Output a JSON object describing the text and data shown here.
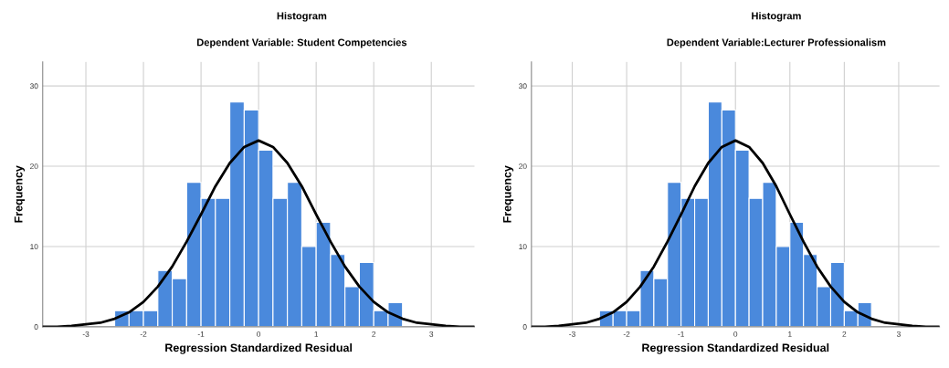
{
  "chart_data": [
    {
      "type": "histogram",
      "title": "Histogram",
      "subtitle": "Dependent Variable: Student Competencies",
      "xlabel": "Regression Standardized Residual",
      "ylabel": "Frequency",
      "bins": [
        -2.5,
        -2.25,
        -2.0,
        -1.75,
        -1.5,
        -1.25,
        -1.0,
        -0.75,
        -0.5,
        -0.25,
        0,
        0.25,
        0.5,
        0.75,
        1.0,
        1.25,
        1.5,
        1.75,
        2.0,
        2.25,
        2.5
      ],
      "series": [
        {
          "color": "#4a89dc",
          "values": [
            2,
            2,
            2,
            7,
            6,
            18,
            16,
            16,
            28,
            27,
            22,
            16,
            18,
            10,
            13,
            9,
            5,
            8,
            2,
            3
          ]
        },
        {
          "type": "line",
          "color": "#000000",
          "x": [
            -3.75,
            -3.5,
            -3.25,
            -3.0,
            -2.75,
            -2.5,
            -2.25,
            -2.0,
            -1.75,
            -1.5,
            -1.25,
            -1.0,
            -0.75,
            -0.5,
            -0.25,
            0,
            0.25,
            0.5,
            0.75,
            1.0,
            1.25,
            1.5,
            1.75,
            2.0,
            2.25,
            2.5,
            2.75,
            3.0,
            3.25,
            3.5,
            3.75
          ],
          "values": [
            0,
            0,
            0.1,
            0.3,
            0.5,
            1.0,
            1.8,
            3.1,
            5.0,
            7.5,
            10.6,
            14.0,
            17.5,
            20.4,
            22.4,
            23.2,
            22.4,
            20.4,
            17.5,
            14.0,
            10.6,
            7.5,
            5.0,
            3.1,
            1.8,
            1.0,
            0.5,
            0.3,
            0.1,
            0,
            0
          ]
        }
      ],
      "xlim": [
        -3.75,
        3.75
      ],
      "ylim": [
        0,
        33
      ],
      "xticks": [
        -3,
        -2,
        -1,
        0,
        1,
        2,
        3
      ],
      "yticks": [
        0,
        10,
        20,
        30
      ],
      "grid": true,
      "legend": false
    },
    {
      "type": "histogram",
      "title": "Histogram",
      "subtitle": "Dependent Variable:Lecturer Professionalism",
      "xlabel": "Regression Standardized Residual",
      "ylabel": "Frequency",
      "bins": [
        -2.5,
        -2.25,
        -2.0,
        -1.75,
        -1.5,
        -1.25,
        -1.0,
        -0.75,
        -0.5,
        -0.25,
        0,
        0.25,
        0.5,
        0.75,
        1.0,
        1.25,
        1.5,
        1.75,
        2.0,
        2.25,
        2.5
      ],
      "series": [
        {
          "color": "#4a89dc",
          "values": [
            2,
            2,
            2,
            7,
            6,
            18,
            16,
            16,
            28,
            27,
            22,
            16,
            18,
            10,
            13,
            9,
            5,
            8,
            2,
            3
          ]
        },
        {
          "type": "line",
          "color": "#000000",
          "x": [
            -3.75,
            -3.5,
            -3.25,
            -3.0,
            -2.75,
            -2.5,
            -2.25,
            -2.0,
            -1.75,
            -1.5,
            -1.25,
            -1.0,
            -0.75,
            -0.5,
            -0.25,
            0,
            0.25,
            0.5,
            0.75,
            1.0,
            1.25,
            1.5,
            1.75,
            2.0,
            2.25,
            2.5,
            2.75,
            3.0,
            3.25,
            3.5,
            3.75
          ],
          "values": [
            0,
            0,
            0.1,
            0.3,
            0.5,
            1.0,
            1.8,
            3.1,
            5.0,
            7.5,
            10.6,
            14.0,
            17.5,
            20.4,
            22.4,
            23.2,
            22.4,
            20.4,
            17.5,
            14.0,
            10.6,
            7.5,
            5.0,
            3.1,
            1.8,
            1.0,
            0.5,
            0.3,
            0.1,
            0,
            0
          ]
        }
      ],
      "xlim": [
        -3.75,
        3.75
      ],
      "ylim": [
        0,
        33
      ],
      "xticks": [
        -3,
        -2,
        -1,
        0,
        1,
        2,
        3
      ],
      "yticks": [
        0,
        10,
        20,
        30
      ],
      "grid": true,
      "legend": false
    }
  ]
}
